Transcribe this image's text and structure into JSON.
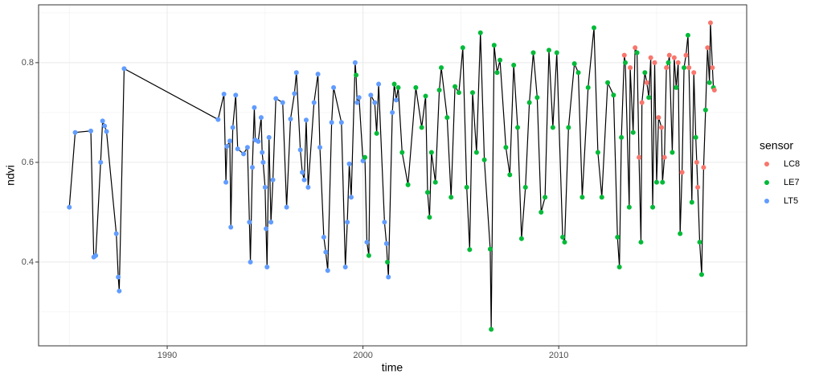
{
  "chart_data": {
    "type": "scatter-line",
    "x_label": "time",
    "y_label": "ndvi",
    "legend_title": "sensor",
    "series": [
      {
        "name": "LC8",
        "color": "#F8766D"
      },
      {
        "name": "LE7",
        "color": "#00BA38"
      },
      {
        "name": "LT5",
        "color": "#619CFF"
      }
    ],
    "line_color": "#000000",
    "xlim": [
      1983.43,
      2019.6
    ],
    "xticks": [
      1990,
      2000,
      2010
    ],
    "xminor": [
      1985,
      1995,
      2005,
      2015
    ],
    "ylim": [
      0.232,
      0.916
    ],
    "yticks": [
      0.4,
      0.6,
      0.8
    ],
    "yminor": [
      0.3,
      0.5,
      0.7,
      0.9
    ],
    "grid": true,
    "legend": "right",
    "points": [
      {
        "time": 1985.0,
        "ndvi": 0.51,
        "sensor": "LT5"
      },
      {
        "time": 1985.3,
        "ndvi": 0.66,
        "sensor": "LT5"
      },
      {
        "time": 1986.1,
        "ndvi": 0.663,
        "sensor": "LT5"
      },
      {
        "time": 1986.25,
        "ndvi": 0.41,
        "sensor": "LT5"
      },
      {
        "time": 1986.35,
        "ndvi": 0.413,
        "sensor": "LT5"
      },
      {
        "time": 1986.6,
        "ndvi": 0.6,
        "sensor": "LT5"
      },
      {
        "time": 1986.7,
        "ndvi": 0.683,
        "sensor": "LT5"
      },
      {
        "time": 1986.8,
        "ndvi": 0.673,
        "sensor": "LT5"
      },
      {
        "time": 1986.9,
        "ndvi": 0.662,
        "sensor": "LT5"
      },
      {
        "time": 1987.4,
        "ndvi": 0.457,
        "sensor": "LT5"
      },
      {
        "time": 1987.5,
        "ndvi": 0.37,
        "sensor": "LT5"
      },
      {
        "time": 1987.55,
        "ndvi": 0.342,
        "sensor": "LT5"
      },
      {
        "time": 1987.8,
        "ndvi": 0.788,
        "sensor": "LT5"
      },
      {
        "time": 1992.6,
        "ndvi": 0.686,
        "sensor": "LT5"
      },
      {
        "time": 1992.9,
        "ndvi": 0.737,
        "sensor": "LT5"
      },
      {
        "time": 1993.0,
        "ndvi": 0.56,
        "sensor": "LT5"
      },
      {
        "time": 1993.05,
        "ndvi": 0.632,
        "sensor": "LT5"
      },
      {
        "time": 1993.2,
        "ndvi": 0.643,
        "sensor": "LT5"
      },
      {
        "time": 1993.25,
        "ndvi": 0.47,
        "sensor": "LT5"
      },
      {
        "time": 1993.35,
        "ndvi": 0.67,
        "sensor": "LT5"
      },
      {
        "time": 1993.5,
        "ndvi": 0.735,
        "sensor": "LT5"
      },
      {
        "time": 1993.6,
        "ndvi": 0.627,
        "sensor": "LT5"
      },
      {
        "time": 1993.9,
        "ndvi": 0.617,
        "sensor": "LT5"
      },
      {
        "time": 1994.1,
        "ndvi": 0.63,
        "sensor": "LT5"
      },
      {
        "time": 1994.2,
        "ndvi": 0.48,
        "sensor": "LT5"
      },
      {
        "time": 1994.25,
        "ndvi": 0.4,
        "sensor": "LT5"
      },
      {
        "time": 1994.35,
        "ndvi": 0.59,
        "sensor": "LT5"
      },
      {
        "time": 1994.45,
        "ndvi": 0.71,
        "sensor": "LT5"
      },
      {
        "time": 1994.5,
        "ndvi": 0.645,
        "sensor": "LT5"
      },
      {
        "time": 1994.65,
        "ndvi": 0.642,
        "sensor": "LT5"
      },
      {
        "time": 1994.8,
        "ndvi": 0.69,
        "sensor": "LT5"
      },
      {
        "time": 1994.85,
        "ndvi": 0.62,
        "sensor": "LT5"
      },
      {
        "time": 1994.9,
        "ndvi": 0.6,
        "sensor": "LT5"
      },
      {
        "time": 1995.0,
        "ndvi": 0.55,
        "sensor": "LT5"
      },
      {
        "time": 1995.05,
        "ndvi": 0.467,
        "sensor": "LT5"
      },
      {
        "time": 1995.1,
        "ndvi": 0.39,
        "sensor": "LT5"
      },
      {
        "time": 1995.2,
        "ndvi": 0.65,
        "sensor": "LT5"
      },
      {
        "time": 1995.3,
        "ndvi": 0.48,
        "sensor": "LT5"
      },
      {
        "time": 1995.4,
        "ndvi": 0.565,
        "sensor": "LT5"
      },
      {
        "time": 1995.55,
        "ndvi": 0.728,
        "sensor": "LT5"
      },
      {
        "time": 1995.9,
        "ndvi": 0.72,
        "sensor": "LT5"
      },
      {
        "time": 1996.1,
        "ndvi": 0.51,
        "sensor": "LT5"
      },
      {
        "time": 1996.3,
        "ndvi": 0.687,
        "sensor": "LT5"
      },
      {
        "time": 1996.5,
        "ndvi": 0.738,
        "sensor": "LT5"
      },
      {
        "time": 1996.6,
        "ndvi": 0.78,
        "sensor": "LT5"
      },
      {
        "time": 1996.8,
        "ndvi": 0.625,
        "sensor": "LT5"
      },
      {
        "time": 1996.9,
        "ndvi": 0.58,
        "sensor": "LT5"
      },
      {
        "time": 1997.0,
        "ndvi": 0.565,
        "sensor": "LT5"
      },
      {
        "time": 1997.1,
        "ndvi": 0.685,
        "sensor": "LT5"
      },
      {
        "time": 1997.2,
        "ndvi": 0.55,
        "sensor": "LT5"
      },
      {
        "time": 1997.5,
        "ndvi": 0.72,
        "sensor": "LT5"
      },
      {
        "time": 1997.7,
        "ndvi": 0.777,
        "sensor": "LT5"
      },
      {
        "time": 1997.8,
        "ndvi": 0.63,
        "sensor": "LT5"
      },
      {
        "time": 1998.0,
        "ndvi": 0.45,
        "sensor": "LT5"
      },
      {
        "time": 1998.1,
        "ndvi": 0.42,
        "sensor": "LT5"
      },
      {
        "time": 1998.2,
        "ndvi": 0.383,
        "sensor": "LT5"
      },
      {
        "time": 1998.4,
        "ndvi": 0.68,
        "sensor": "LT5"
      },
      {
        "time": 1998.5,
        "ndvi": 0.75,
        "sensor": "LT5"
      },
      {
        "time": 1998.9,
        "ndvi": 0.68,
        "sensor": "LT5"
      },
      {
        "time": 1999.1,
        "ndvi": 0.39,
        "sensor": "LT5"
      },
      {
        "time": 1999.2,
        "ndvi": 0.48,
        "sensor": "LT5"
      },
      {
        "time": 1999.3,
        "ndvi": 0.597,
        "sensor": "LT5"
      },
      {
        "time": 1999.4,
        "ndvi": 0.53,
        "sensor": "LT5"
      },
      {
        "time": 1999.6,
        "ndvi": 0.8,
        "sensor": "LT5"
      },
      {
        "time": 1999.65,
        "ndvi": 0.775,
        "sensor": "LE7"
      },
      {
        "time": 1999.7,
        "ndvi": 0.72,
        "sensor": "LT5"
      },
      {
        "time": 1999.8,
        "ndvi": 0.73,
        "sensor": "LT5"
      },
      {
        "time": 2000.0,
        "ndvi": 0.603,
        "sensor": "LT5"
      },
      {
        "time": 2000.1,
        "ndvi": 0.61,
        "sensor": "LE7"
      },
      {
        "time": 2000.2,
        "ndvi": 0.44,
        "sensor": "LT5"
      },
      {
        "time": 2000.3,
        "ndvi": 0.413,
        "sensor": "LE7"
      },
      {
        "time": 2000.4,
        "ndvi": 0.735,
        "sensor": "LT5"
      },
      {
        "time": 2000.6,
        "ndvi": 0.72,
        "sensor": "LT5"
      },
      {
        "time": 2000.7,
        "ndvi": 0.658,
        "sensor": "LE7"
      },
      {
        "time": 2000.8,
        "ndvi": 0.757,
        "sensor": "LT5"
      },
      {
        "time": 2001.1,
        "ndvi": 0.48,
        "sensor": "LT5"
      },
      {
        "time": 2001.2,
        "ndvi": 0.437,
        "sensor": "LT5"
      },
      {
        "time": 2001.25,
        "ndvi": 0.4,
        "sensor": "LE7"
      },
      {
        "time": 2001.3,
        "ndvi": 0.37,
        "sensor": "LT5"
      },
      {
        "time": 2001.5,
        "ndvi": 0.7,
        "sensor": "LT5"
      },
      {
        "time": 2001.6,
        "ndvi": 0.757,
        "sensor": "LE7"
      },
      {
        "time": 2001.7,
        "ndvi": 0.725,
        "sensor": "LT5"
      },
      {
        "time": 2001.8,
        "ndvi": 0.75,
        "sensor": "LE7"
      },
      {
        "time": 2002.0,
        "ndvi": 0.62,
        "sensor": "LE7"
      },
      {
        "time": 2002.3,
        "ndvi": 0.555,
        "sensor": "LE7"
      },
      {
        "time": 2002.7,
        "ndvi": 0.75,
        "sensor": "LE7"
      },
      {
        "time": 2003.0,
        "ndvi": 0.67,
        "sensor": "LE7"
      },
      {
        "time": 2003.2,
        "ndvi": 0.733,
        "sensor": "LE7"
      },
      {
        "time": 2003.3,
        "ndvi": 0.54,
        "sensor": "LE7"
      },
      {
        "time": 2003.4,
        "ndvi": 0.49,
        "sensor": "LE7"
      },
      {
        "time": 2003.5,
        "ndvi": 0.62,
        "sensor": "LE7"
      },
      {
        "time": 2003.7,
        "ndvi": 0.56,
        "sensor": "LE7"
      },
      {
        "time": 2003.9,
        "ndvi": 0.745,
        "sensor": "LE7"
      },
      {
        "time": 2004.0,
        "ndvi": 0.79,
        "sensor": "LE7"
      },
      {
        "time": 2004.3,
        "ndvi": 0.69,
        "sensor": "LE7"
      },
      {
        "time": 2004.5,
        "ndvi": 0.53,
        "sensor": "LE7"
      },
      {
        "time": 2004.7,
        "ndvi": 0.752,
        "sensor": "LE7"
      },
      {
        "time": 2004.9,
        "ndvi": 0.74,
        "sensor": "LE7"
      },
      {
        "time": 2005.1,
        "ndvi": 0.83,
        "sensor": "LE7"
      },
      {
        "time": 2005.3,
        "ndvi": 0.55,
        "sensor": "LE7"
      },
      {
        "time": 2005.45,
        "ndvi": 0.425,
        "sensor": "LE7"
      },
      {
        "time": 2005.6,
        "ndvi": 0.74,
        "sensor": "LE7"
      },
      {
        "time": 2005.8,
        "ndvi": 0.62,
        "sensor": "LE7"
      },
      {
        "time": 2006.0,
        "ndvi": 0.86,
        "sensor": "LE7"
      },
      {
        "time": 2006.2,
        "ndvi": 0.605,
        "sensor": "LE7"
      },
      {
        "time": 2006.5,
        "ndvi": 0.426,
        "sensor": "LE7"
      },
      {
        "time": 2006.55,
        "ndvi": 0.265,
        "sensor": "LE7"
      },
      {
        "time": 2006.7,
        "ndvi": 0.835,
        "sensor": "LE7"
      },
      {
        "time": 2006.85,
        "ndvi": 0.78,
        "sensor": "LE7"
      },
      {
        "time": 2007.0,
        "ndvi": 0.805,
        "sensor": "LE7"
      },
      {
        "time": 2007.3,
        "ndvi": 0.63,
        "sensor": "LE7"
      },
      {
        "time": 2007.5,
        "ndvi": 0.575,
        "sensor": "LE7"
      },
      {
        "time": 2007.7,
        "ndvi": 0.795,
        "sensor": "LE7"
      },
      {
        "time": 2007.9,
        "ndvi": 0.67,
        "sensor": "LE7"
      },
      {
        "time": 2008.1,
        "ndvi": 0.447,
        "sensor": "LE7"
      },
      {
        "time": 2008.3,
        "ndvi": 0.55,
        "sensor": "LE7"
      },
      {
        "time": 2008.5,
        "ndvi": 0.72,
        "sensor": "LE7"
      },
      {
        "time": 2008.7,
        "ndvi": 0.82,
        "sensor": "LE7"
      },
      {
        "time": 2008.9,
        "ndvi": 0.73,
        "sensor": "LE7"
      },
      {
        "time": 2009.1,
        "ndvi": 0.5,
        "sensor": "LE7"
      },
      {
        "time": 2009.3,
        "ndvi": 0.53,
        "sensor": "LE7"
      },
      {
        "time": 2009.5,
        "ndvi": 0.825,
        "sensor": "LE7"
      },
      {
        "time": 2009.7,
        "ndvi": 0.67,
        "sensor": "LE7"
      },
      {
        "time": 2009.9,
        "ndvi": 0.82,
        "sensor": "LE7"
      },
      {
        "time": 2010.2,
        "ndvi": 0.45,
        "sensor": "LE7"
      },
      {
        "time": 2010.3,
        "ndvi": 0.44,
        "sensor": "LE7"
      },
      {
        "time": 2010.5,
        "ndvi": 0.67,
        "sensor": "LE7"
      },
      {
        "time": 2010.8,
        "ndvi": 0.798,
        "sensor": "LE7"
      },
      {
        "time": 2011.0,
        "ndvi": 0.78,
        "sensor": "LE7"
      },
      {
        "time": 2011.2,
        "ndvi": 0.53,
        "sensor": "LE7"
      },
      {
        "time": 2011.5,
        "ndvi": 0.75,
        "sensor": "LE7"
      },
      {
        "time": 2011.8,
        "ndvi": 0.87,
        "sensor": "LE7"
      },
      {
        "time": 2012.0,
        "ndvi": 0.62,
        "sensor": "LE7"
      },
      {
        "time": 2012.2,
        "ndvi": 0.53,
        "sensor": "LE7"
      },
      {
        "time": 2012.5,
        "ndvi": 0.76,
        "sensor": "LE7"
      },
      {
        "time": 2012.8,
        "ndvi": 0.735,
        "sensor": "LE7"
      },
      {
        "time": 2013.0,
        "ndvi": 0.45,
        "sensor": "LE7"
      },
      {
        "time": 2013.1,
        "ndvi": 0.39,
        "sensor": "LE7"
      },
      {
        "time": 2013.2,
        "ndvi": 0.65,
        "sensor": "LE7"
      },
      {
        "time": 2013.35,
        "ndvi": 0.815,
        "sensor": "LC8"
      },
      {
        "time": 2013.4,
        "ndvi": 0.8,
        "sensor": "LE7"
      },
      {
        "time": 2013.6,
        "ndvi": 0.51,
        "sensor": "LE7"
      },
      {
        "time": 2013.65,
        "ndvi": 0.79,
        "sensor": "LC8"
      },
      {
        "time": 2013.8,
        "ndvi": 0.66,
        "sensor": "LE7"
      },
      {
        "time": 2013.9,
        "ndvi": 0.83,
        "sensor": "LC8"
      },
      {
        "time": 2014.0,
        "ndvi": 0.82,
        "sensor": "LE7"
      },
      {
        "time": 2014.1,
        "ndvi": 0.61,
        "sensor": "LC8"
      },
      {
        "time": 2014.2,
        "ndvi": 0.44,
        "sensor": "LE7"
      },
      {
        "time": 2014.25,
        "ndvi": 0.72,
        "sensor": "LC8"
      },
      {
        "time": 2014.4,
        "ndvi": 0.78,
        "sensor": "LE7"
      },
      {
        "time": 2014.5,
        "ndvi": 0.76,
        "sensor": "LC8"
      },
      {
        "time": 2014.6,
        "ndvi": 0.73,
        "sensor": "LE7"
      },
      {
        "time": 2014.7,
        "ndvi": 0.81,
        "sensor": "LC8"
      },
      {
        "time": 2014.8,
        "ndvi": 0.51,
        "sensor": "LE7"
      },
      {
        "time": 2014.9,
        "ndvi": 0.8,
        "sensor": "LC8"
      },
      {
        "time": 2015.0,
        "ndvi": 0.56,
        "sensor": "LE7"
      },
      {
        "time": 2015.1,
        "ndvi": 0.69,
        "sensor": "LC8"
      },
      {
        "time": 2015.25,
        "ndvi": 0.67,
        "sensor": "LC8"
      },
      {
        "time": 2015.3,
        "ndvi": 0.56,
        "sensor": "LE7"
      },
      {
        "time": 2015.4,
        "ndvi": 0.61,
        "sensor": "LC8"
      },
      {
        "time": 2015.5,
        "ndvi": 0.79,
        "sensor": "LC8"
      },
      {
        "time": 2015.6,
        "ndvi": 0.8,
        "sensor": "LE7"
      },
      {
        "time": 2015.65,
        "ndvi": 0.815,
        "sensor": "LC8"
      },
      {
        "time": 2015.8,
        "ndvi": 0.62,
        "sensor": "LE7"
      },
      {
        "time": 2015.9,
        "ndvi": 0.81,
        "sensor": "LC8"
      },
      {
        "time": 2016.0,
        "ndvi": 0.75,
        "sensor": "LE7"
      },
      {
        "time": 2016.1,
        "ndvi": 0.8,
        "sensor": "LC8"
      },
      {
        "time": 2016.2,
        "ndvi": 0.457,
        "sensor": "LE7"
      },
      {
        "time": 2016.3,
        "ndvi": 0.58,
        "sensor": "LC8"
      },
      {
        "time": 2016.4,
        "ndvi": 0.79,
        "sensor": "LE7"
      },
      {
        "time": 2016.5,
        "ndvi": 0.815,
        "sensor": "LC8"
      },
      {
        "time": 2016.6,
        "ndvi": 0.855,
        "sensor": "LE7"
      },
      {
        "time": 2016.65,
        "ndvi": 0.79,
        "sensor": "LC8"
      },
      {
        "time": 2016.8,
        "ndvi": 0.52,
        "sensor": "LE7"
      },
      {
        "time": 2016.9,
        "ndvi": 0.78,
        "sensor": "LC8"
      },
      {
        "time": 2017.0,
        "ndvi": 0.65,
        "sensor": "LE7"
      },
      {
        "time": 2017.05,
        "ndvi": 0.6,
        "sensor": "LC8"
      },
      {
        "time": 2017.1,
        "ndvi": 0.55,
        "sensor": "LC8"
      },
      {
        "time": 2017.2,
        "ndvi": 0.44,
        "sensor": "LE7"
      },
      {
        "time": 2017.3,
        "ndvi": 0.375,
        "sensor": "LE7"
      },
      {
        "time": 2017.4,
        "ndvi": 0.59,
        "sensor": "LC8"
      },
      {
        "time": 2017.5,
        "ndvi": 0.705,
        "sensor": "LE7"
      },
      {
        "time": 2017.6,
        "ndvi": 0.83,
        "sensor": "LC8"
      },
      {
        "time": 2017.7,
        "ndvi": 0.76,
        "sensor": "LE7"
      },
      {
        "time": 2017.75,
        "ndvi": 0.88,
        "sensor": "LC8"
      },
      {
        "time": 2017.85,
        "ndvi": 0.79,
        "sensor": "LC8"
      },
      {
        "time": 2017.9,
        "ndvi": 0.75,
        "sensor": "LE7"
      },
      {
        "time": 2017.95,
        "ndvi": 0.745,
        "sensor": "LC8"
      }
    ]
  }
}
